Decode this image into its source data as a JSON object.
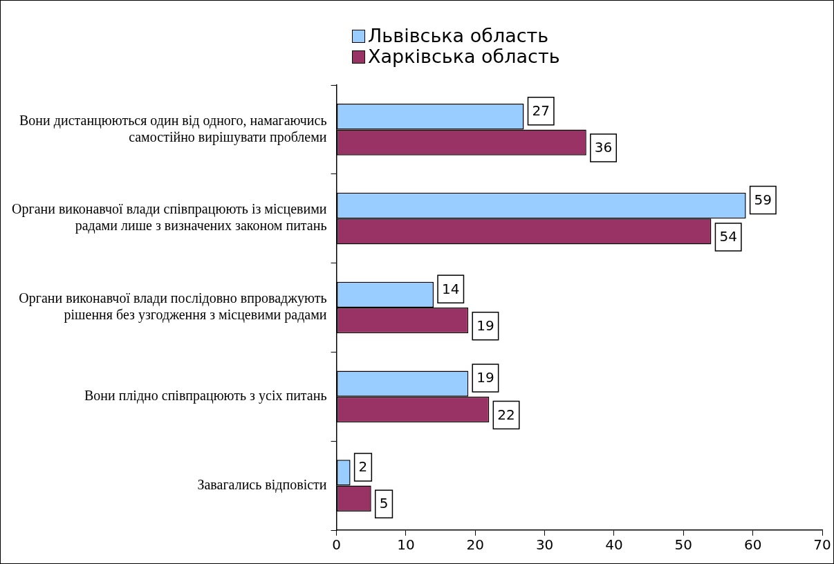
{
  "chart_data": {
    "type": "bar",
    "orientation": "horizontal",
    "categories": [
      "Вони дистанцюються один від одного, намагаючись самостійно вирішувати проблеми",
      "Органи виконавчої влади співпрацюють із місцевими радами лише з визначених законом питань",
      "Органи виконавчої влади послідовно впроваджують рішення без узгодження з місцевими радами",
      "Вони плідно співпрацюють з усіх питань",
      "Завагались відповісти"
    ],
    "series": [
      {
        "name": "Львівська область",
        "color": "#99ccff",
        "values": [
          27,
          59,
          14,
          19,
          2
        ]
      },
      {
        "name": "Харківська область",
        "color": "#993366",
        "values": [
          36,
          54,
          19,
          22,
          5
        ]
      }
    ],
    "xlim": [
      0,
      70
    ],
    "xticks": [
      0,
      10,
      20,
      30,
      40,
      50,
      60,
      70
    ],
    "grid": false,
    "legend": "top",
    "data_labels": true
  }
}
